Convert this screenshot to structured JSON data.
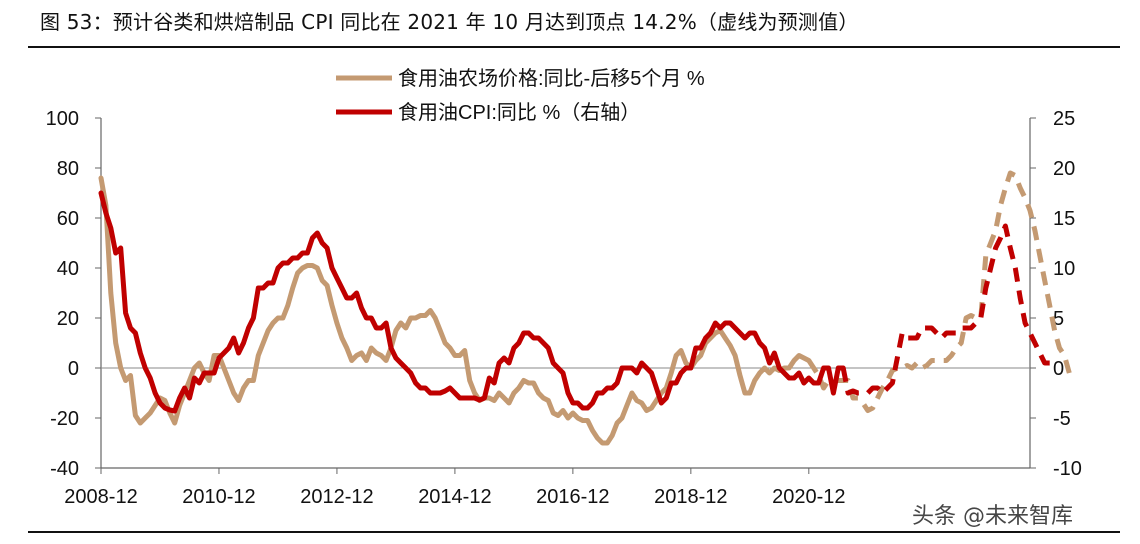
{
  "figure": {
    "title": "图 53：预计谷类和烘焙制品 CPI 同比在 2021 年 10 月达到顶点 14.2%（虚线为预测值）",
    "watermark": "头条 @未来智库"
  },
  "chart_data": {
    "type": "line",
    "x_tick_labels": [
      "2008-12",
      "2010-12",
      "2012-12",
      "2014-12",
      "2016-12",
      "2018-12",
      "2020-12"
    ],
    "ylim_left": [
      -40,
      100
    ],
    "yticks_left": [
      -40,
      -20,
      0,
      20,
      40,
      60,
      80,
      100
    ],
    "ylim_right": [
      -10,
      25
    ],
    "yticks_right": [
      -10,
      -5,
      0,
      5,
      10,
      15,
      20,
      25
    ],
    "legend": {
      "position": "top-center"
    },
    "colors": {
      "oil_price": "#C49A72",
      "oil_cpi": "#C00000"
    },
    "series": [
      {
        "name": "食用油农场价格:同比-后移5个月 %",
        "axis": "left",
        "x_start": "2008-12",
        "forecast_from_index": 144,
        "values": [
          76,
          65,
          30,
          10,
          0,
          -5,
          -3,
          -19,
          -22,
          -20,
          -18,
          -15,
          -12,
          -13,
          -18,
          -22,
          -15,
          -10,
          -5,
          0,
          2,
          -2,
          -5,
          5,
          5,
          0,
          -5,
          -10,
          -13,
          -8,
          -5,
          -5,
          5,
          10,
          15,
          18,
          20,
          20,
          25,
          32,
          38,
          40,
          41,
          41,
          40,
          35,
          33,
          25,
          18,
          12,
          8,
          3,
          5,
          6,
          3,
          8,
          6,
          5,
          3,
          8,
          15,
          18,
          16,
          20,
          20,
          21,
          21,
          23,
          20,
          15,
          10,
          8,
          5,
          5,
          7,
          -5,
          -10,
          -13,
          -12,
          -12,
          -13,
          -10,
          -12,
          -14,
          -10,
          -8,
          -5,
          -6,
          -6,
          -10,
          -12,
          -13,
          -18,
          -19,
          -17,
          -20,
          -18,
          -20,
          -21,
          -21,
          -25,
          -28,
          -30,
          -30,
          -27,
          -22,
          -20,
          -15,
          -10,
          -13,
          -14,
          -17,
          -16,
          -13,
          -10,
          -8,
          -2,
          5,
          7,
          2,
          0,
          3,
          5,
          10,
          12,
          14,
          15,
          12,
          9,
          5,
          -3,
          -10,
          -10,
          -5,
          -2,
          0,
          -2,
          0,
          -1,
          0,
          0,
          3,
          5,
          4,
          3,
          0,
          -3,
          -8,
          -5,
          -5,
          -5,
          -5,
          -5,
          -12,
          -12,
          -14,
          -17,
          -16,
          -12,
          -8,
          -5,
          -1,
          0,
          0,
          1,
          0,
          2,
          0,
          1,
          3,
          3,
          3,
          3,
          5,
          8,
          10,
          20,
          21,
          20,
          20,
          45,
          50,
          55,
          65,
          72,
          78,
          77,
          72,
          68,
          63,
          55,
          45,
          35,
          25,
          15,
          8,
          5,
          -2
        ]
      },
      {
        "name": "食用油CPI:同比 %（右轴）",
        "axis": "right",
        "x_start": "2008-12",
        "forecast_from_index": 151,
        "values": [
          17.5,
          15.5,
          14.0,
          11.5,
          12.0,
          5.5,
          4.0,
          3.5,
          1.5,
          0.0,
          -1.0,
          -2.5,
          -3.5,
          -4.0,
          -4.2,
          -4.3,
          -3.0,
          -2.0,
          -3.0,
          -1.0,
          -1.5,
          -0.5,
          -0.5,
          -0.5,
          1.0,
          1.5,
          2.0,
          3.0,
          1.5,
          2.5,
          4.0,
          5.0,
          8.0,
          8.0,
          8.5,
          8.5,
          10.0,
          10.5,
          10.5,
          11.0,
          11.0,
          11.5,
          11.5,
          13.0,
          13.5,
          12.5,
          12.0,
          10.0,
          9.0,
          8.0,
          7.0,
          7.0,
          7.5,
          6.0,
          5.0,
          5.0,
          4.0,
          4.0,
          4.5,
          2.0,
          1.0,
          0.5,
          0.0,
          -0.5,
          -1.5,
          -2.0,
          -2.0,
          -2.5,
          -2.5,
          -2.5,
          -2.3,
          -2.0,
          -2.5,
          -3.0,
          -3.0,
          -3.0,
          -3.0,
          -3.2,
          -3.0,
          -1.0,
          -1.5,
          0.5,
          1.0,
          0.5,
          2.0,
          2.5,
          3.5,
          3.5,
          3.0,
          3.0,
          2.5,
          2.0,
          0.5,
          0.0,
          -0.5,
          -2.5,
          -3.5,
          -3.5,
          -4.0,
          -4.0,
          -3.5,
          -2.5,
          -2.5,
          -2.0,
          -2.0,
          -1.5,
          0.0,
          0.0,
          0.0,
          -0.5,
          0.5,
          0.0,
          -0.5,
          -2.0,
          -3.5,
          -3.0,
          -1.5,
          -1.5,
          -0.5,
          0.0,
          0.0,
          2.0,
          2.0,
          3.0,
          3.5,
          4.5,
          4.0,
          4.5,
          4.5,
          4.0,
          3.5,
          3.0,
          3.5,
          3.5,
          2.5,
          2.0,
          0.5,
          1.5,
          0.0,
          -0.5,
          -1.0,
          -1.0,
          -0.5,
          -1.5,
          -1.0,
          -1.5,
          -1.5,
          0.0,
          0.0,
          -2.5,
          0.0,
          0.0,
          -2.5,
          -2.3,
          -2.5,
          -2.5,
          -2.5,
          -2.0,
          -2.0,
          -2.5,
          -2.0,
          -1.5,
          1.0,
          3.5,
          3.0,
          3.0,
          3.0,
          4.0,
          4.0,
          4.0,
          3.5,
          3.0,
          3.5,
          3.5,
          3.5,
          4.0,
          4.0,
          4.0,
          4.5,
          5.0,
          8.0,
          10.0,
          12.0,
          13.0,
          14.2,
          12.0,
          10.0,
          7.0,
          4.5,
          3.5,
          2.5,
          1.5,
          0.5,
          0.5
        ]
      }
    ]
  }
}
